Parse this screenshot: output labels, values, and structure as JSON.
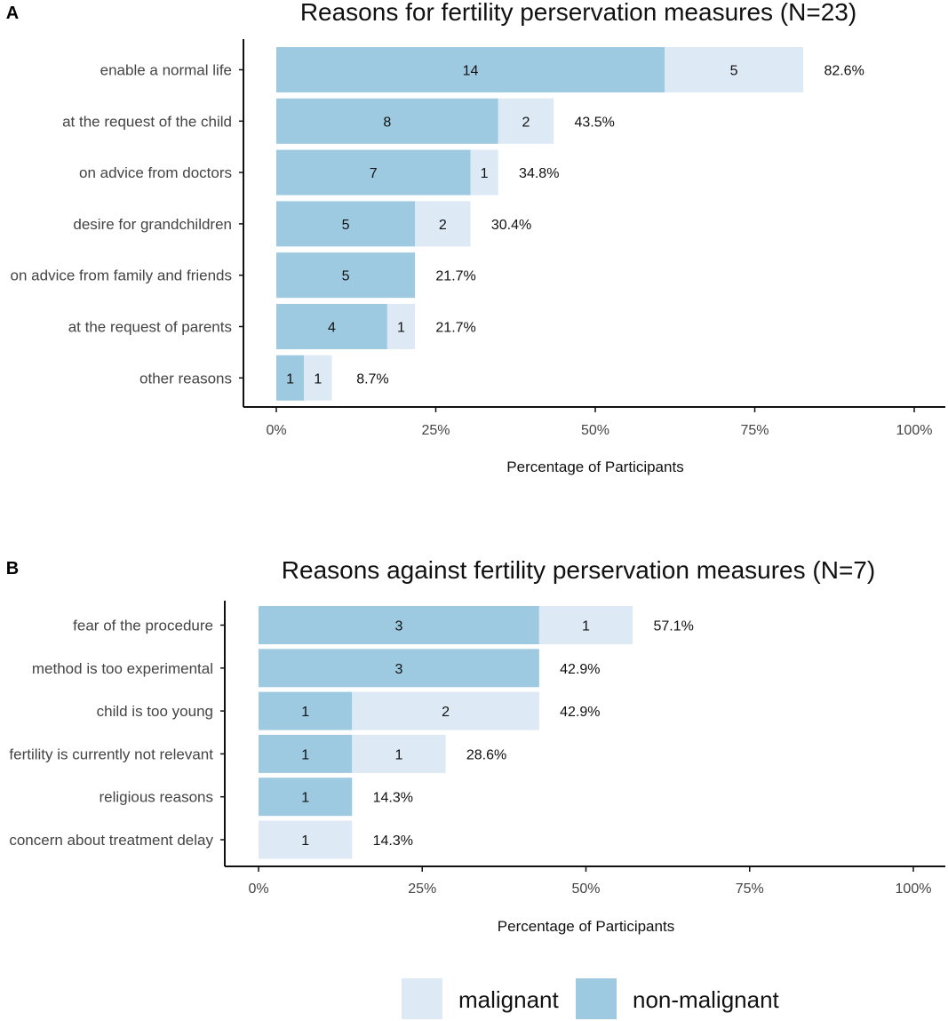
{
  "colors": {
    "malignant": "#dde9f5",
    "non_malignant": "#9ecae1",
    "axis": "#111111"
  },
  "legend": {
    "items": [
      {
        "key": "malignant",
        "label": "malignant"
      },
      {
        "key": "non_malignant",
        "label": "non-malignant"
      }
    ]
  },
  "chart_data": [
    {
      "panel": "A",
      "type": "bar",
      "orientation": "horizontal",
      "stacked": true,
      "title": "Reasons for fertility perservation measures (N=23)",
      "xlabel": "Percentage of Participants",
      "ylabel": "",
      "total_n": 23,
      "xlim": [
        0,
        100
      ],
      "xticks": [
        "0%",
        "25%",
        "50%",
        "75%",
        "100%"
      ],
      "categories": [
        "enable a normal life",
        "at the request of the child",
        "on advice from doctors",
        "desire for grandchildren",
        "on advice from family and friends",
        "at the request of parents",
        "other reasons"
      ],
      "series": [
        {
          "name": "non-malignant",
          "key": "non_malignant",
          "values": [
            14,
            8,
            7,
            5,
            5,
            4,
            1
          ]
        },
        {
          "name": "malignant",
          "key": "malignant",
          "values": [
            5,
            2,
            1,
            2,
            0,
            1,
            1
          ]
        }
      ],
      "totals_pct": [
        "82.6%",
        "43.5%",
        "34.8%",
        "30.4%",
        "21.7%",
        "21.7%",
        "8.7%"
      ]
    },
    {
      "panel": "B",
      "type": "bar",
      "orientation": "horizontal",
      "stacked": true,
      "title": "Reasons against fertility perservation measures (N=7)",
      "xlabel": "Percentage of Participants",
      "ylabel": "",
      "total_n": 7,
      "xlim": [
        0,
        100
      ],
      "xticks": [
        "0%",
        "25%",
        "50%",
        "75%",
        "100%"
      ],
      "categories": [
        "fear of the procedure",
        "method is too experimental",
        "child is too young",
        "fertility is currently not relevant",
        "religious reasons",
        "concern about treatment delay"
      ],
      "series": [
        {
          "name": "non-malignant",
          "key": "non_malignant",
          "values": [
            3,
            3,
            1,
            1,
            1,
            0
          ]
        },
        {
          "name": "malignant",
          "key": "malignant",
          "values": [
            1,
            0,
            2,
            1,
            0,
            1
          ]
        }
      ],
      "totals_pct": [
        "57.1%",
        "42.9%",
        "42.9%",
        "28.6%",
        "14.3%",
        "14.3%"
      ]
    }
  ]
}
